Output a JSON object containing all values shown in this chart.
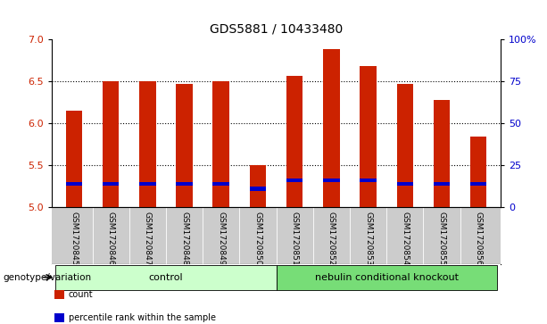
{
  "title": "GDS5881 / 10433480",
  "samples": [
    "GSM1720845",
    "GSM1720846",
    "GSM1720847",
    "GSM1720848",
    "GSM1720849",
    "GSM1720850",
    "GSM1720851",
    "GSM1720852",
    "GSM1720853",
    "GSM1720854",
    "GSM1720855",
    "GSM1720856"
  ],
  "bar_values": [
    6.15,
    6.5,
    6.5,
    6.47,
    6.5,
    5.5,
    6.56,
    6.88,
    6.68,
    6.47,
    6.27,
    5.84
  ],
  "percentile_values": [
    5.28,
    5.28,
    5.28,
    5.28,
    5.28,
    5.22,
    5.32,
    5.32,
    5.32,
    5.28,
    5.28,
    5.28
  ],
  "bar_color": "#cc2200",
  "percentile_color": "#0000cc",
  "ymin": 5.0,
  "ymax": 7.0,
  "yticks": [
    5.0,
    5.5,
    6.0,
    6.5,
    7.0
  ],
  "right_yticks": [
    0,
    25,
    50,
    75,
    100
  ],
  "right_yticklabels": [
    "0",
    "25",
    "50",
    "75",
    "100%"
  ],
  "groups": [
    {
      "label": "control",
      "start": 0,
      "end": 6
    },
    {
      "label": "nebulin conditional knockout",
      "start": 6,
      "end": 12
    }
  ],
  "group_colors": [
    "#ccffcc",
    "#77dd77"
  ],
  "genotype_label": "genotype/variation",
  "legend_items": [
    {
      "label": "count",
      "color": "#cc2200"
    },
    {
      "label": "percentile rank within the sample",
      "color": "#0000cc"
    }
  ],
  "bar_width": 0.45,
  "background_color": "#ffffff",
  "tick_label_area_color": "#cccccc"
}
